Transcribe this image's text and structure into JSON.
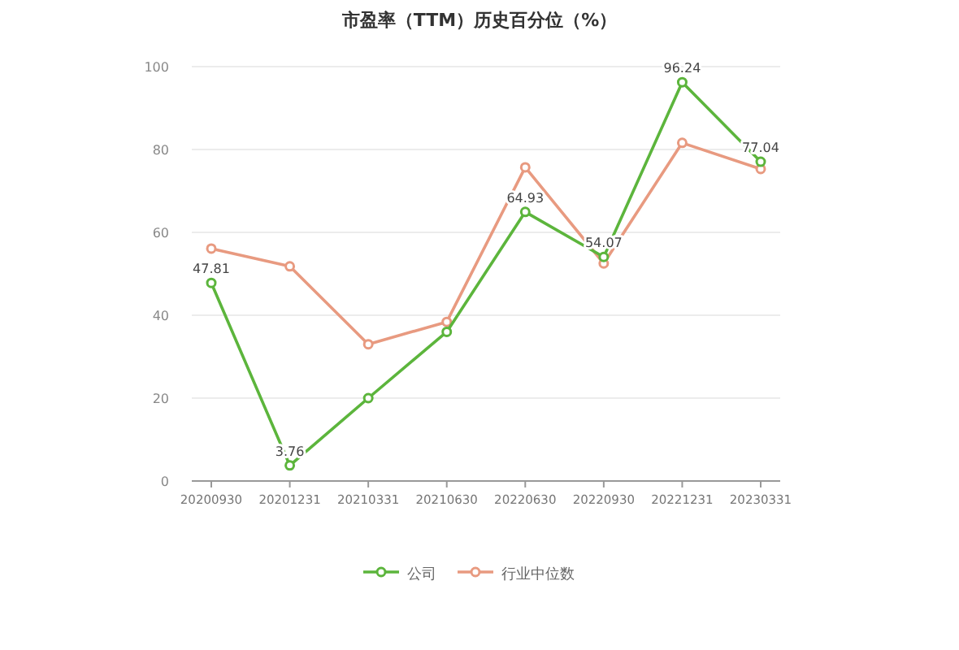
{
  "chart_data": {
    "type": "line",
    "title": "市盈率（TTM）历史百分位（%）",
    "categories": [
      "20200930",
      "20201231",
      "20210331",
      "20210630",
      "20220630",
      "20220930",
      "20221231",
      "20230331"
    ],
    "series": [
      {
        "name": "公司",
        "color": "#5cb53c",
        "values": [
          47.81,
          3.76,
          20.0,
          36.0,
          64.93,
          54.07,
          96.24,
          77.04
        ],
        "value_labels": [
          "47.81",
          "3.76",
          null,
          null,
          "64.93",
          "54.07",
          "96.24",
          "77.04"
        ]
      },
      {
        "name": "行业中位数",
        "color": "#e89a80",
        "values": [
          56.1,
          51.8,
          33.0,
          38.4,
          75.7,
          52.5,
          81.6,
          75.3
        ]
      }
    ],
    "ylim": [
      0,
      100
    ],
    "yticks": [
      0,
      20,
      40,
      60,
      80,
      100
    ],
    "grid": "y",
    "legend": "bottom",
    "marker": "circle",
    "line_style": "solid"
  }
}
